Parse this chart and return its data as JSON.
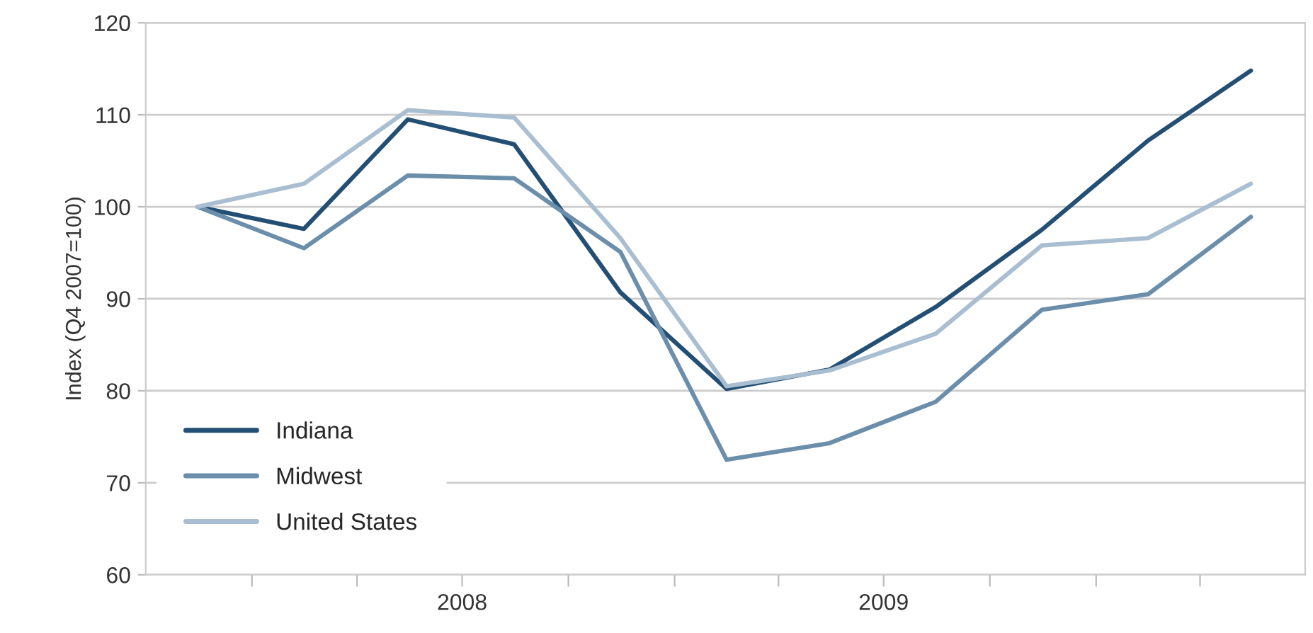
{
  "chart_data": {
    "type": "line",
    "ylabel": "Index (Q4 2007=100)",
    "x": [
      "2007-11-15",
      "2008-02-15",
      "2008-05-15",
      "2008-08-15",
      "2008-11-15",
      "2009-02-15",
      "2009-05-15",
      "2009-08-15",
      "2009-11-15",
      "2010-02-15",
      "2010-05-15"
    ],
    "xlim": [
      "2007-10-01",
      "2010-07-01"
    ],
    "xticks": [
      {
        "value": "2008-01-01",
        "label": null
      },
      {
        "value": "2008-04-01",
        "label": null
      },
      {
        "value": "2008-07-01",
        "label": "2008"
      },
      {
        "value": "2008-10-01",
        "label": null
      },
      {
        "value": "2009-01-01",
        "label": null
      },
      {
        "value": "2009-04-01",
        "label": null
      },
      {
        "value": "2009-07-01",
        "label": "2009"
      },
      {
        "value": "2009-10-01",
        "label": null
      },
      {
        "value": "2010-01-01",
        "label": null
      },
      {
        "value": "2010-04-01",
        "label": null
      }
    ],
    "ylim": [
      60,
      120
    ],
    "yticks": [
      60,
      70,
      80,
      90,
      100,
      110,
      120
    ],
    "grid": "y",
    "legend": "bottom left",
    "marker": "none",
    "line_style": "solid",
    "series": [
      {
        "name": "Indiana",
        "color": "#244f74",
        "values": [
          100,
          97.6,
          109.5,
          106.8,
          90.7,
          80.2,
          82.3,
          89.1,
          97.5,
          107.2,
          114.8
        ]
      },
      {
        "name": "Midwest",
        "color": "#6b8eab",
        "values": [
          100,
          95.5,
          103.4,
          103.1,
          95.1,
          72.5,
          74.3,
          78.8,
          88.8,
          90.5,
          98.9
        ]
      },
      {
        "name": "United States",
        "color": "#a9bfd1",
        "values": [
          100,
          102.5,
          110.5,
          109.7,
          96.6,
          80.5,
          82.2,
          86.2,
          95.8,
          96.6,
          102.5
        ]
      }
    ]
  }
}
